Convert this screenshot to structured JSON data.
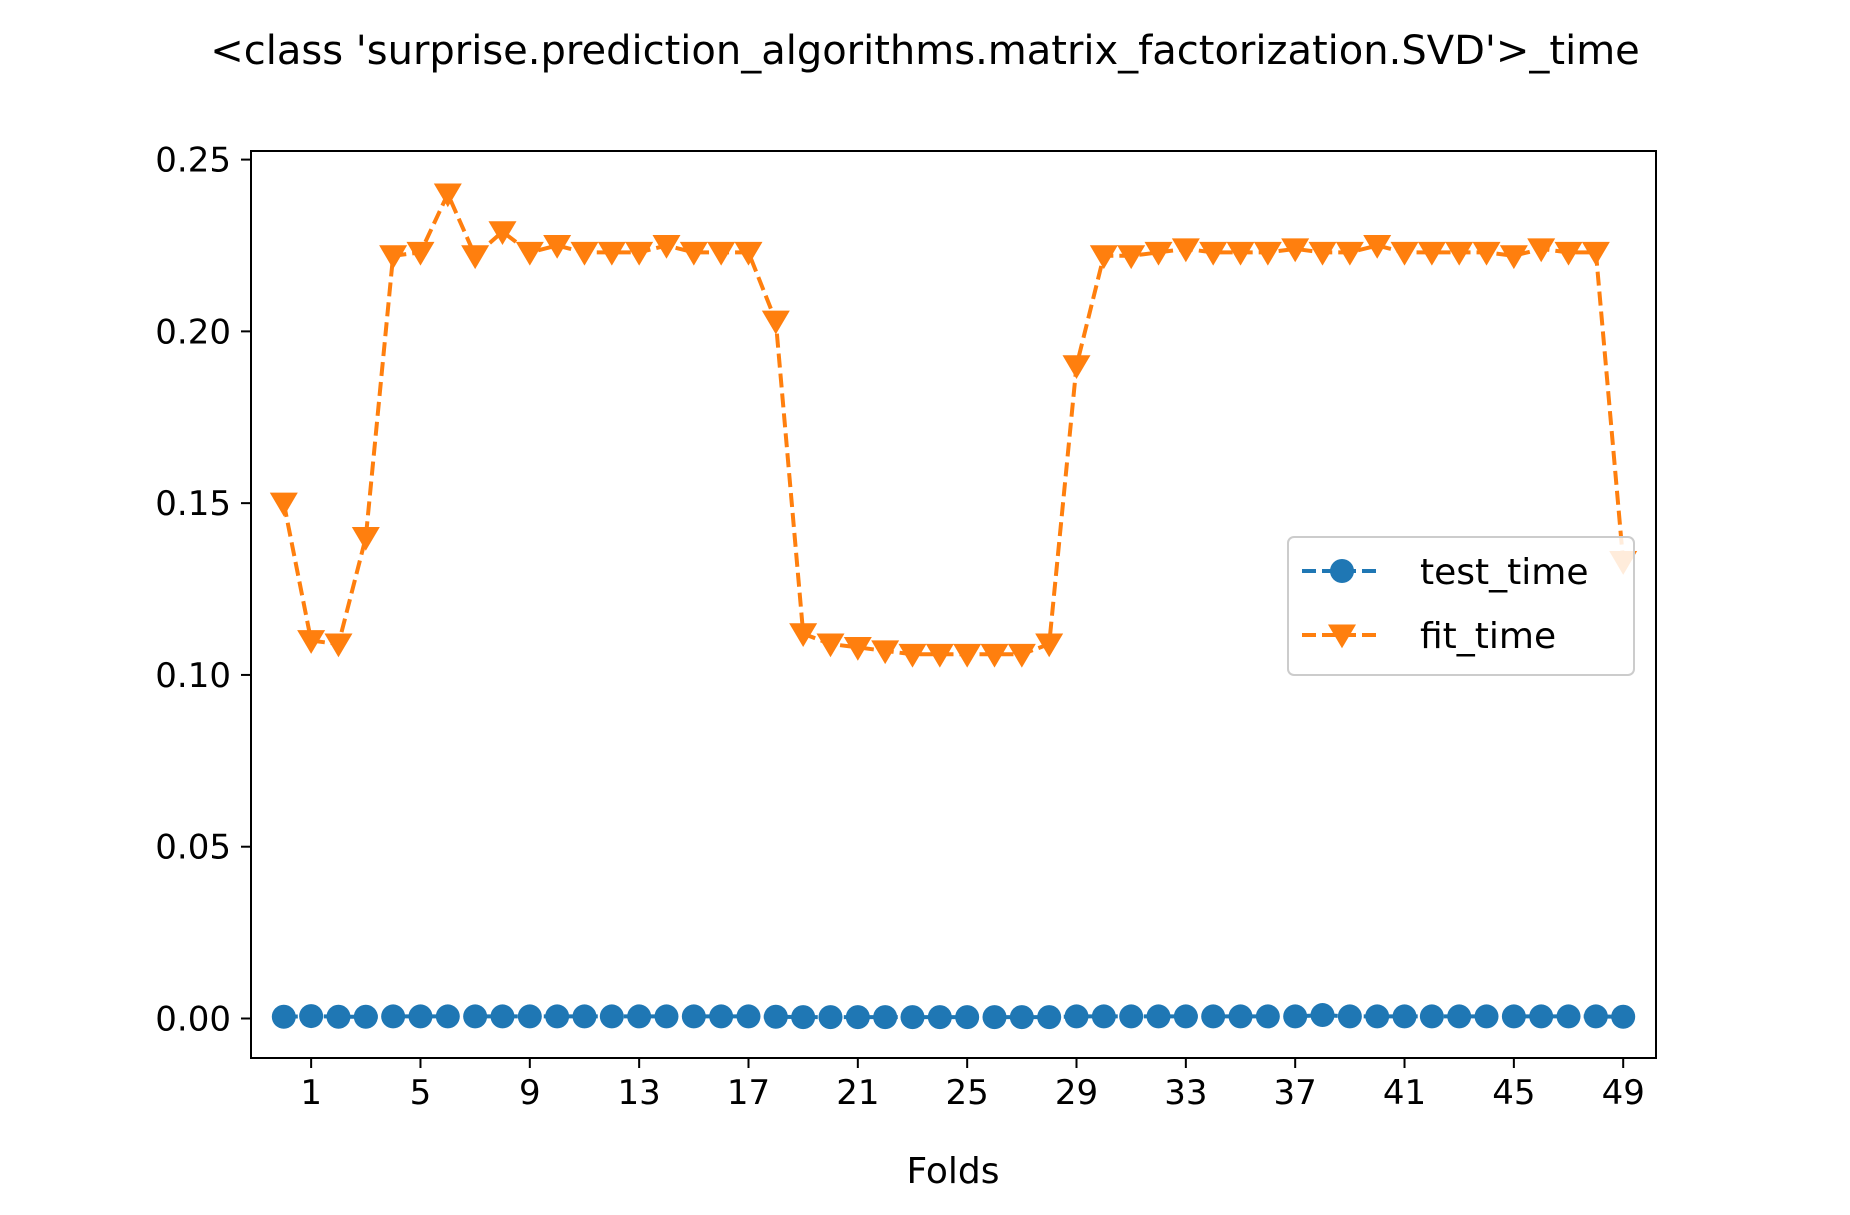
{
  "chart_data": {
    "type": "line",
    "title": "<class 'surprise.prediction_algorithms.matrix_factorization.SVD'>_time",
    "xlabel": "Folds",
    "ylabel": "",
    "xlim": [
      -1.2,
      50.2
    ],
    "ylim": [
      -0.0115,
      0.2525
    ],
    "xticks": [
      1,
      5,
      9,
      13,
      17,
      21,
      25,
      29,
      33,
      37,
      41,
      45,
      49
    ],
    "yticks": [
      0.0,
      0.05,
      0.1,
      0.15,
      0.2,
      0.25
    ],
    "ytick_labels": [
      "0.00",
      "0.05",
      "0.10",
      "0.15",
      "0.20",
      "0.25"
    ],
    "legend_position": "center-right",
    "x": [
      0,
      1,
      2,
      3,
      4,
      5,
      6,
      7,
      8,
      9,
      10,
      11,
      12,
      13,
      14,
      15,
      16,
      17,
      18,
      19,
      20,
      21,
      22,
      23,
      24,
      25,
      26,
      27,
      28,
      29,
      30,
      31,
      32,
      33,
      34,
      35,
      36,
      37,
      38,
      39,
      40,
      41,
      42,
      43,
      44,
      45,
      46,
      47,
      48,
      49
    ],
    "series": [
      {
        "name": "test_time",
        "color": "#1f77b4",
        "marker": "circle",
        "linestyle": "dashed",
        "values": [
          0.0005,
          0.0007,
          0.0005,
          0.0005,
          0.0006,
          0.0006,
          0.0006,
          0.0006,
          0.0006,
          0.0006,
          0.0006,
          0.0006,
          0.0006,
          0.0006,
          0.0006,
          0.0006,
          0.0006,
          0.0006,
          0.0005,
          0.0004,
          0.0004,
          0.0004,
          0.0004,
          0.0004,
          0.0004,
          0.0004,
          0.0004,
          0.0004,
          0.0004,
          0.0006,
          0.0006,
          0.0006,
          0.0006,
          0.0006,
          0.0006,
          0.0006,
          0.0006,
          0.0006,
          0.001,
          0.0006,
          0.0006,
          0.0006,
          0.0006,
          0.0006,
          0.0006,
          0.0006,
          0.0006,
          0.0006,
          0.0006,
          0.0005
        ]
      },
      {
        "name": "fit_time",
        "color": "#ff7f0e",
        "marker": "triangle-down",
        "linestyle": "dashed",
        "values": [
          0.15,
          0.11,
          0.109,
          0.14,
          0.222,
          0.223,
          0.24,
          0.222,
          0.229,
          0.223,
          0.225,
          0.223,
          0.223,
          0.223,
          0.225,
          0.223,
          0.223,
          0.223,
          0.203,
          0.112,
          0.109,
          0.108,
          0.107,
          0.106,
          0.106,
          0.106,
          0.106,
          0.106,
          0.109,
          0.19,
          0.222,
          0.222,
          0.223,
          0.224,
          0.223,
          0.223,
          0.223,
          0.224,
          0.223,
          0.223,
          0.225,
          0.223,
          0.223,
          0.223,
          0.223,
          0.222,
          0.224,
          0.223,
          0.223,
          0.133
        ]
      }
    ]
  }
}
